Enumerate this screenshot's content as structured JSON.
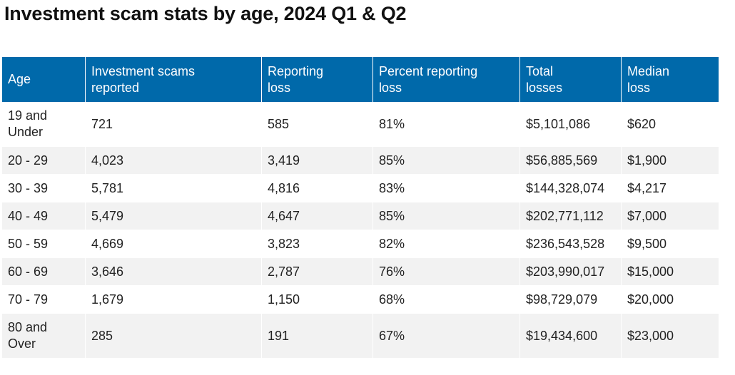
{
  "title": "Investment scam stats by age, 2024 Q1 & Q2",
  "table": {
    "headers": [
      [
        "Age",
        ""
      ],
      [
        "Investment scams",
        "reported"
      ],
      [
        "Reporting",
        "loss"
      ],
      [
        "Percent reporting",
        "loss"
      ],
      [
        "Total",
        "losses"
      ],
      [
        "Median",
        "loss"
      ]
    ],
    "rows": [
      {
        "age": [
          "19 and",
          "Under"
        ],
        "reported": "721",
        "reporting_loss": "585",
        "percent": "81%",
        "total": "$5,101,086",
        "median": "$620"
      },
      {
        "age": [
          "20 - 29"
        ],
        "reported": "4,023",
        "reporting_loss": "3,419",
        "percent": "85%",
        "total": "$56,885,569",
        "median": "$1,900"
      },
      {
        "age": [
          "30 - 39"
        ],
        "reported": "5,781",
        "reporting_loss": "4,816",
        "percent": "83%",
        "total": "$144,328,074",
        "median": "$4,217"
      },
      {
        "age": [
          "40 - 49"
        ],
        "reported": "5,479",
        "reporting_loss": "4,647",
        "percent": "85%",
        "total": "$202,771,112",
        "median": "$7,000"
      },
      {
        "age": [
          "50 - 59"
        ],
        "reported": "4,669",
        "reporting_loss": "3,823",
        "percent": "82%",
        "total": "$236,543,528",
        "median": "$9,500"
      },
      {
        "age": [
          "60 - 69"
        ],
        "reported": "3,646",
        "reporting_loss": "2,787",
        "percent": "76%",
        "total": "$203,990,017",
        "median": "$15,000"
      },
      {
        "age": [
          "70 - 79"
        ],
        "reported": "1,679",
        "reporting_loss": "1,150",
        "percent": "68%",
        "total": "$98,729,079",
        "median": "$20,000"
      },
      {
        "age": [
          "80 and",
          "Over"
        ],
        "reported": "285",
        "reporting_loss": "191",
        "percent": "67%",
        "total": "$19,434,600",
        "median": "$23,000"
      }
    ]
  },
  "colors": {
    "header_bg": "#0069aa",
    "header_text": "#ffffff",
    "stripe": "#f2f2f2"
  }
}
